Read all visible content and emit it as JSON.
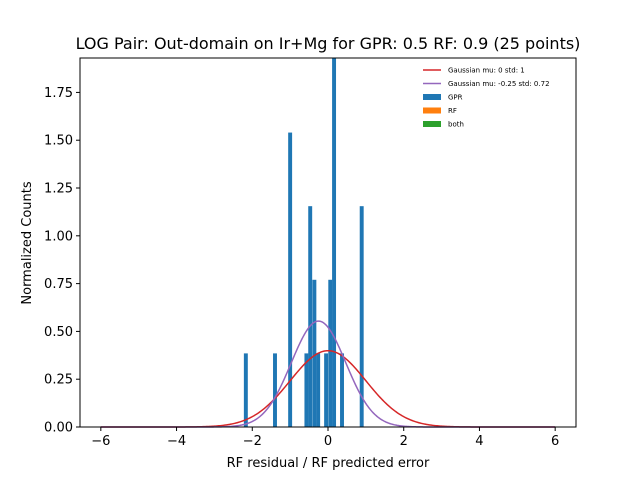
{
  "chart_data": {
    "type": "bar",
    "title": "LOG Pair: Out-domain on Ir+Mg for GPR: 0.5 RF: 0.9 (25 points)",
    "xlabel": "RF residual / RF predicted error",
    "ylabel": "Normalized Counts",
    "xlim": [
      -6.55,
      6.55
    ],
    "ylim": [
      0,
      1.93
    ],
    "xticks": [
      -6,
      -4,
      -2,
      0,
      2,
      4,
      6
    ],
    "xtick_labels": [
      "−6",
      "−4",
      "−2",
      "0",
      "2",
      "4",
      "6"
    ],
    "yticks": [
      0.0,
      0.25,
      0.5,
      0.75,
      1.0,
      1.25,
      1.5,
      1.75
    ],
    "ytick_labels": [
      "0.00",
      "0.25",
      "0.50",
      "0.75",
      "1.00",
      "1.25",
      "1.50",
      "1.75"
    ],
    "bin_width": 0.104,
    "histogram": {
      "name": "GPR",
      "color": "#1f77b4",
      "bins": [
        {
          "x": -2.17,
          "height": 0.385
        },
        {
          "x": -1.4,
          "height": 0.385
        },
        {
          "x": -1.0,
          "height": 1.54
        },
        {
          "x": -0.57,
          "height": 0.385
        },
        {
          "x": -0.47,
          "height": 1.155
        },
        {
          "x": -0.36,
          "height": 0.77
        },
        {
          "x": -0.26,
          "height": 0.385
        },
        {
          "x": -0.05,
          "height": 0.385
        },
        {
          "x": 0.06,
          "height": 0.77
        },
        {
          "x": 0.16,
          "height": 1.93
        },
        {
          "x": 0.37,
          "height": 0.385
        },
        {
          "x": 0.89,
          "height": 1.155
        }
      ]
    },
    "curves": [
      {
        "name": "Gaussian mu: 0 std: 1",
        "mu": 0,
        "std": 1,
        "color": "#d62728"
      },
      {
        "name": "Gaussian mu: -0.25 std: 0.72",
        "mu": -0.25,
        "std": 0.72,
        "color": "#9467bd"
      }
    ],
    "curve_range": [
      -6,
      6
    ],
    "legend": {
      "placement": "top-right",
      "entries": [
        {
          "label": "Gaussian mu: 0 std: 1",
          "kind": "line",
          "color": "#d62728"
        },
        {
          "label": "Gaussian mu: -0.25 std: 0.72",
          "kind": "line",
          "color": "#9467bd"
        },
        {
          "label": "GPR",
          "kind": "patch",
          "color": "#1f77b4"
        },
        {
          "label": "RF",
          "kind": "patch",
          "color": "#ff7f0e"
        },
        {
          "label": "both",
          "kind": "patch",
          "color": "#2ca02c"
        }
      ]
    },
    "grid": false
  }
}
